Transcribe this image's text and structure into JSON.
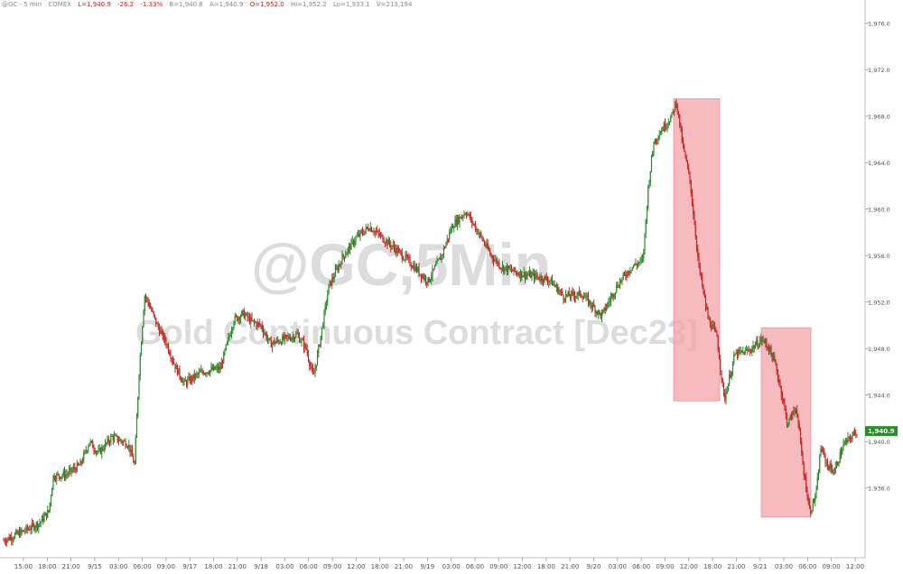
{
  "header": {
    "symbol": "@GC - 5 min",
    "exchange": "COMEX",
    "last": "L=1,940.9",
    "change": "-26.2",
    "change_pct": "-1.33%",
    "bid": "B=1,940.8",
    "ask": "A=1,940.9",
    "open": "O=1,952.0",
    "high": "Hi=1,952.2",
    "low": "Lo=1,933.1",
    "volume": "V=213,194"
  },
  "watermark": {
    "line1": "@GC,5Min",
    "line2": "Gold Continuous Contract [Dec23]"
  },
  "last_price_label": "1,940.9",
  "colors": {
    "up": "#2f8a2f",
    "down": "#c62828",
    "highlight": "#f4a4aa",
    "last_label_bg": "#2f8a2f"
  },
  "chart_data": {
    "type": "line",
    "title": "@GC,5Min",
    "subtitle": "Gold Continuous Contract [Dec23]",
    "xlabel": "",
    "ylabel": "",
    "x_tick_labels": [
      "15:00",
      "18:00",
      "21:00",
      "9/15",
      "03:00",
      "06:00",
      "09:00",
      "9/17",
      "18:00",
      "21:00",
      "9/18",
      "03:00",
      "06:00",
      "09:00",
      "12:00",
      "18:00",
      "21:00",
      "9/19",
      "03:00",
      "06:00",
      "09:00",
      "12:00",
      "18:00",
      "21:00",
      "9/20",
      "03:00",
      "06:00",
      "09:00",
      "12:00",
      "18:00",
      "21:00",
      "9/21",
      "03:00",
      "06:00",
      "09:00",
      "12:00"
    ],
    "y_tick_labels": [
      "1,936.0",
      "1,940.0",
      "1,944.0",
      "1,948.0",
      "1,952.0",
      "1,956.0",
      "1,960.0",
      "1,964.0",
      "1,968.0",
      "1,972.0",
      "1,976.0"
    ],
    "ylim": [
      1930,
      1978
    ],
    "grid": false,
    "series": [
      {
        "values": [
          [
            0,
            1931.5
          ],
          [
            20,
            1932.2
          ],
          [
            40,
            1933.0
          ],
          [
            50,
            1934.0
          ],
          [
            55,
            1937.0
          ],
          [
            70,
            1937.2
          ],
          [
            85,
            1938.0
          ],
          [
            95,
            1940.0
          ],
          [
            105,
            1939.0
          ],
          [
            120,
            1940.4
          ],
          [
            138,
            1939.8
          ],
          [
            145,
            1938.0
          ],
          [
            150,
            1946.0
          ],
          [
            156,
            1952.6
          ],
          [
            160,
            1952.0
          ],
          [
            170,
            1950.0
          ],
          [
            180,
            1948.5
          ],
          [
            190,
            1946.5
          ],
          [
            200,
            1945.0
          ],
          [
            220,
            1946.0
          ],
          [
            240,
            1946.3
          ],
          [
            255,
            1950.5
          ],
          [
            265,
            1951.0
          ],
          [
            275,
            1950.3
          ],
          [
            285,
            1950.0
          ],
          [
            295,
            1948.4
          ],
          [
            310,
            1948.8
          ],
          [
            325,
            1949.2
          ],
          [
            335,
            1948.0
          ],
          [
            343,
            1945.5
          ],
          [
            350,
            1948.5
          ],
          [
            360,
            1953.3
          ],
          [
            375,
            1955.8
          ],
          [
            390,
            1957.5
          ],
          [
            405,
            1958.5
          ],
          [
            420,
            1957.5
          ],
          [
            435,
            1956.5
          ],
          [
            450,
            1955.4
          ],
          [
            470,
            1953.8
          ],
          [
            485,
            1956.0
          ],
          [
            497,
            1958.6
          ],
          [
            512,
            1959.8
          ],
          [
            528,
            1957.7
          ],
          [
            540,
            1956.0
          ],
          [
            552,
            1955.0
          ],
          [
            570,
            1954.5
          ],
          [
            590,
            1954.2
          ],
          [
            605,
            1953.9
          ],
          [
            620,
            1952.5
          ],
          [
            640,
            1952.7
          ],
          [
            662,
            1950.8
          ],
          [
            680,
            1953.5
          ],
          [
            695,
            1955.0
          ],
          [
            708,
            1955.6
          ],
          [
            714,
            1962.0
          ],
          [
            720,
            1965.8
          ],
          [
            730,
            1967.0
          ],
          [
            740,
            1968.0
          ],
          [
            745,
            1969.3
          ],
          [
            752,
            1965.5
          ],
          [
            760,
            1962.5
          ],
          [
            770,
            1955.0
          ],
          [
            780,
            1950.6
          ],
          [
            790,
            1949.0
          ],
          [
            798,
            1943.6
          ],
          [
            810,
            1947.5
          ],
          [
            825,
            1947.8
          ],
          [
            840,
            1948.8
          ],
          [
            848,
            1948.0
          ],
          [
            855,
            1946.5
          ],
          [
            862,
            1944.0
          ],
          [
            868,
            1941.5
          ],
          [
            878,
            1943.0
          ],
          [
            885,
            1938.0
          ],
          [
            893,
            1933.9
          ],
          [
            900,
            1935.6
          ],
          [
            905,
            1939.5
          ],
          [
            912,
            1938.0
          ],
          [
            920,
            1937.4
          ],
          [
            930,
            1939.7
          ],
          [
            945,
            1940.9
          ]
        ]
      }
    ],
    "annotations": [
      {
        "type": "highlight_box",
        "x_range": [
          "9/20 11:00",
          "9/20 17:00"
        ],
        "y_range": [
          1943.5,
          1969.5
        ]
      },
      {
        "type": "highlight_box",
        "x_range": [
          "9/21 02:00",
          "9/21 07:00"
        ],
        "y_range": [
          1933.5,
          1949.8
        ]
      }
    ]
  }
}
